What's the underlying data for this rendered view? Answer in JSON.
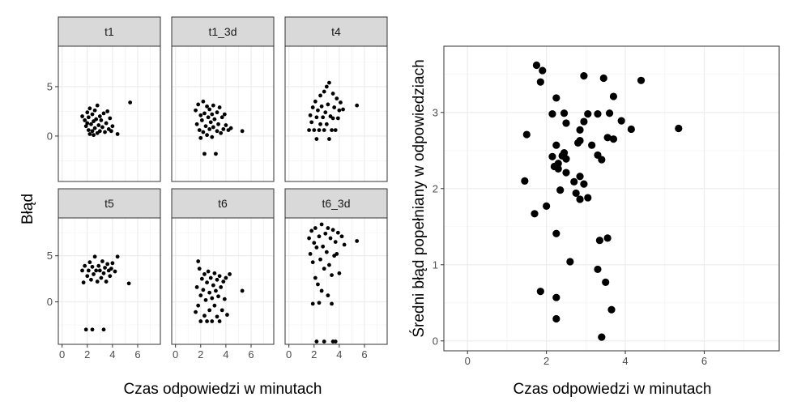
{
  "chart_data": [
    {
      "type": "scatter",
      "layout": "facet_wrap",
      "xlabel": "Czas odpowiedzi w minutach",
      "ylabel": "Błąd",
      "xlim": [
        -0.3,
        7.8
      ],
      "ylim": [
        -4.6,
        9.1
      ],
      "x_ticks": [
        0,
        2,
        4,
        6
      ],
      "y_ticks": [
        0,
        5
      ],
      "grid": true,
      "panels": [
        {
          "title": "t1",
          "points": [
            [
              1.6,
              2.0
            ],
            [
              1.8,
              1.6
            ],
            [
              1.9,
              1.0
            ],
            [
              2.0,
              2.4
            ],
            [
              2.0,
              1.3
            ],
            [
              2.1,
              0.6
            ],
            [
              2.1,
              1.9
            ],
            [
              2.2,
              0.2
            ],
            [
              2.2,
              2.8
            ],
            [
              2.3,
              1.2
            ],
            [
              2.4,
              0.5
            ],
            [
              2.4,
              2.2
            ],
            [
              2.5,
              0.1
            ],
            [
              2.5,
              1.5
            ],
            [
              2.6,
              2.6
            ],
            [
              2.6,
              0.8
            ],
            [
              2.7,
              1.7
            ],
            [
              2.8,
              0.3
            ],
            [
              2.8,
              3.1
            ],
            [
              2.9,
              1.1
            ],
            [
              3.0,
              2.0
            ],
            [
              3.0,
              0.5
            ],
            [
              3.1,
              1.6
            ],
            [
              3.2,
              0.9
            ],
            [
              3.3,
              2.3
            ],
            [
              3.4,
              0.4
            ],
            [
              3.5,
              1.3
            ],
            [
              3.6,
              2.5
            ],
            [
              3.7,
              0.7
            ],
            [
              3.8,
              1.8
            ],
            [
              3.9,
              0.5
            ],
            [
              4.0,
              1.0
            ],
            [
              4.4,
              0.2
            ],
            [
              5.4,
              3.4
            ]
          ]
        },
        {
          "title": "t1_3d",
          "points": [
            [
              1.6,
              2.6
            ],
            [
              1.7,
              1.2
            ],
            [
              1.8,
              3.2
            ],
            [
              1.9,
              0.6
            ],
            [
              2.0,
              2.1
            ],
            [
              2.0,
              -0.2
            ],
            [
              2.1,
              1.6
            ],
            [
              2.2,
              3.5
            ],
            [
              2.2,
              0.4
            ],
            [
              2.3,
              -1.8
            ],
            [
              2.3,
              2.3
            ],
            [
              2.4,
              1.0
            ],
            [
              2.5,
              3.0
            ],
            [
              2.5,
              0.1
            ],
            [
              2.6,
              1.9
            ],
            [
              2.7,
              2.7
            ],
            [
              2.7,
              0.7
            ],
            [
              2.8,
              1.4
            ],
            [
              2.9,
              2.2
            ],
            [
              2.9,
              -0.1
            ],
            [
              3.0,
              3.1
            ],
            [
              3.0,
              0.9
            ],
            [
              3.1,
              1.7
            ],
            [
              3.2,
              -1.8
            ],
            [
              3.3,
              2.4
            ],
            [
              3.3,
              0.5
            ],
            [
              3.4,
              1.2
            ],
            [
              3.5,
              2.9
            ],
            [
              3.6,
              0.3
            ],
            [
              3.7,
              1.9
            ],
            [
              3.8,
              0.7
            ],
            [
              3.9,
              2.2
            ],
            [
              4.0,
              1.1
            ],
            [
              4.2,
              0.6
            ],
            [
              4.4,
              0.8
            ],
            [
              5.3,
              0.5
            ]
          ]
        },
        {
          "title": "t4",
          "points": [
            [
              1.6,
              0.6
            ],
            [
              1.7,
              2.1
            ],
            [
              1.8,
              1.4
            ],
            [
              1.9,
              2.9
            ],
            [
              2.0,
              0.6
            ],
            [
              2.1,
              3.5
            ],
            [
              2.2,
              1.9
            ],
            [
              2.2,
              -0.3
            ],
            [
              2.3,
              2.6
            ],
            [
              2.4,
              0.6
            ],
            [
              2.5,
              4.1
            ],
            [
              2.5,
              1.2
            ],
            [
              2.6,
              3.0
            ],
            [
              2.7,
              1.9
            ],
            [
              2.8,
              4.5
            ],
            [
              2.8,
              0.6
            ],
            [
              2.9,
              2.4
            ],
            [
              3.0,
              5.0
            ],
            [
              3.0,
              1.2
            ],
            [
              3.1,
              3.2
            ],
            [
              3.2,
              5.4
            ],
            [
              3.2,
              -0.3
            ],
            [
              3.3,
              2.0
            ],
            [
              3.4,
              0.6
            ],
            [
              3.5,
              4.3
            ],
            [
              3.5,
              1.8
            ],
            [
              3.6,
              2.9
            ],
            [
              3.7,
              0.6
            ],
            [
              3.8,
              3.8
            ],
            [
              3.9,
              1.8
            ],
            [
              4.0,
              2.6
            ],
            [
              4.1,
              3.4
            ],
            [
              4.3,
              2.7
            ],
            [
              5.4,
              3.1
            ]
          ]
        },
        {
          "title": "t5",
          "points": [
            [
              1.6,
              3.4
            ],
            [
              1.7,
              2.1
            ],
            [
              1.8,
              3.9
            ],
            [
              1.9,
              -3.0
            ],
            [
              2.0,
              2.8
            ],
            [
              2.1,
              3.4
            ],
            [
              2.2,
              4.3
            ],
            [
              2.3,
              2.4
            ],
            [
              2.4,
              3.8
            ],
            [
              2.4,
              -3.0
            ],
            [
              2.5,
              3.0
            ],
            [
              2.6,
              4.9
            ],
            [
              2.7,
              3.4
            ],
            [
              2.8,
              2.2
            ],
            [
              2.9,
              3.9
            ],
            [
              3.0,
              3.4
            ],
            [
              3.1,
              2.6
            ],
            [
              3.2,
              4.4
            ],
            [
              3.3,
              -3.0
            ],
            [
              3.3,
              3.1
            ],
            [
              3.4,
              3.7
            ],
            [
              3.5,
              2.2
            ],
            [
              3.6,
              4.1
            ],
            [
              3.7,
              3.4
            ],
            [
              3.8,
              2.8
            ],
            [
              3.9,
              3.6
            ],
            [
              4.0,
              4.2
            ],
            [
              4.2,
              3.3
            ],
            [
              4.4,
              4.9
            ],
            [
              5.3,
              2.0
            ]
          ]
        },
        {
          "title": "t6",
          "points": [
            [
              1.6,
              -1.1
            ],
            [
              1.7,
              1.6
            ],
            [
              1.8,
              4.4
            ],
            [
              1.8,
              -0.4
            ],
            [
              1.9,
              3.6
            ],
            [
              2.0,
              0.7
            ],
            [
              2.0,
              -2.1
            ],
            [
              2.1,
              2.5
            ],
            [
              2.2,
              1.3
            ],
            [
              2.3,
              3.0
            ],
            [
              2.3,
              -1.5
            ],
            [
              2.4,
              0.2
            ],
            [
              2.5,
              2.1
            ],
            [
              2.5,
              -2.1
            ],
            [
              2.6,
              3.3
            ],
            [
              2.7,
              1.0
            ],
            [
              2.7,
              -0.9
            ],
            [
              2.8,
              2.6
            ],
            [
              2.9,
              0.4
            ],
            [
              2.9,
              -2.1
            ],
            [
              3.0,
              1.8
            ],
            [
              3.1,
              3.1
            ],
            [
              3.1,
              -0.4
            ],
            [
              3.2,
              1.2
            ],
            [
              3.3,
              2.4
            ],
            [
              3.3,
              -1.6
            ],
            [
              3.4,
              0.6
            ],
            [
              3.5,
              2.8
            ],
            [
              3.5,
              -2.1
            ],
            [
              3.6,
              1.6
            ],
            [
              3.7,
              -0.9
            ],
            [
              3.8,
              2.2
            ],
            [
              3.9,
              0.3
            ],
            [
              4.0,
              2.6
            ],
            [
              4.1,
              -1.4
            ],
            [
              4.3,
              3.0
            ],
            [
              5.3,
              1.2
            ]
          ]
        },
        {
          "title": "t6_3d",
          "points": [
            [
              1.6,
              6.9
            ],
            [
              1.7,
              5.2
            ],
            [
              1.8,
              7.7
            ],
            [
              1.9,
              -0.2
            ],
            [
              1.9,
              4.3
            ],
            [
              2.0,
              6.4
            ],
            [
              2.1,
              2.6
            ],
            [
              2.1,
              8.0
            ],
            [
              2.2,
              -4.3
            ],
            [
              2.2,
              5.9
            ],
            [
              2.3,
              1.9
            ],
            [
              2.4,
              7.1
            ],
            [
              2.4,
              -0.1
            ],
            [
              2.5,
              4.6
            ],
            [
              2.6,
              8.4
            ],
            [
              2.6,
              1.2
            ],
            [
              2.7,
              6.0
            ],
            [
              2.8,
              3.6
            ],
            [
              2.8,
              -4.3
            ],
            [
              2.9,
              7.4
            ],
            [
              3.0,
              5.4
            ],
            [
              3.1,
              0.7
            ],
            [
              3.1,
              8.0
            ],
            [
              3.2,
              4.0
            ],
            [
              3.3,
              6.9
            ],
            [
              3.4,
              -0.2
            ],
            [
              3.4,
              2.9
            ],
            [
              3.5,
              7.8
            ],
            [
              3.5,
              -4.3
            ],
            [
              3.6,
              5.0
            ],
            [
              3.7,
              -4.3
            ],
            [
              3.7,
              6.5
            ],
            [
              3.8,
              5.2
            ],
            [
              3.9,
              7.5
            ],
            [
              4.0,
              3.1
            ],
            [
              4.2,
              7.1
            ],
            [
              4.4,
              6.2
            ],
            [
              5.4,
              6.6
            ]
          ]
        }
      ]
    },
    {
      "type": "scatter",
      "xlabel": "Czas odpowiedzi w minutach",
      "ylabel": "Średni błąd popełniany w odpowiedziach",
      "xlim": [
        -0.6,
        7.9
      ],
      "ylim": [
        -0.13,
        3.87
      ],
      "x_ticks": [
        0,
        2,
        4,
        6
      ],
      "y_ticks": [
        0,
        1,
        2,
        3
      ],
      "grid": true,
      "points": [
        [
          1.75,
          3.62
        ],
        [
          1.9,
          3.55
        ],
        [
          1.85,
          3.4
        ],
        [
          2.95,
          3.48
        ],
        [
          3.45,
          3.45
        ],
        [
          4.4,
          3.42
        ],
        [
          2.25,
          3.19
        ],
        [
          3.7,
          3.21
        ],
        [
          2.15,
          2.98
        ],
        [
          2.45,
          2.99
        ],
        [
          3.05,
          2.98
        ],
        [
          3.3,
          2.98
        ],
        [
          3.6,
          2.99
        ],
        [
          2.5,
          2.86
        ],
        [
          2.95,
          2.88
        ],
        [
          3.9,
          2.89
        ],
        [
          1.5,
          2.71
        ],
        [
          2.85,
          2.77
        ],
        [
          4.15,
          2.78
        ],
        [
          5.35,
          2.79
        ],
        [
          2.85,
          2.63
        ],
        [
          3.55,
          2.67
        ],
        [
          3.7,
          2.65
        ],
        [
          2.25,
          2.57
        ],
        [
          2.8,
          2.6
        ],
        [
          3.15,
          2.57
        ],
        [
          2.45,
          2.47
        ],
        [
          2.15,
          2.42
        ],
        [
          2.4,
          2.43
        ],
        [
          3.3,
          2.44
        ],
        [
          2.5,
          2.39
        ],
        [
          3.4,
          2.38
        ],
        [
          2.3,
          2.33
        ],
        [
          2.2,
          2.29
        ],
        [
          2.5,
          2.21
        ],
        [
          2.3,
          2.26
        ],
        [
          2.85,
          2.16
        ],
        [
          2.7,
          2.09
        ],
        [
          1.45,
          2.1
        ],
        [
          2.95,
          2.06
        ],
        [
          2.35,
          1.98
        ],
        [
          2.75,
          1.94
        ],
        [
          2.0,
          1.77
        ],
        [
          2.85,
          1.86
        ],
        [
          3.05,
          1.88
        ],
        [
          1.7,
          1.67
        ],
        [
          2.25,
          1.41
        ],
        [
          3.35,
          1.32
        ],
        [
          3.55,
          1.35
        ],
        [
          2.6,
          1.04
        ],
        [
          3.3,
          0.94
        ],
        [
          3.5,
          0.77
        ],
        [
          1.85,
          0.65
        ],
        [
          2.25,
          0.57
        ],
        [
          3.65,
          0.41
        ],
        [
          2.25,
          0.29
        ],
        [
          3.4,
          0.05
        ]
      ]
    }
  ]
}
